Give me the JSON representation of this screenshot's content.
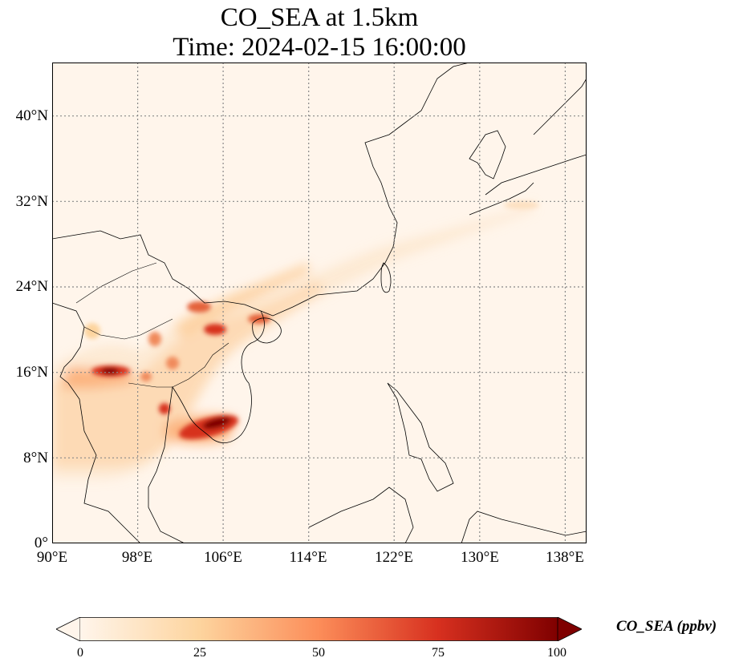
{
  "title": {
    "line1": "CO_SEA at 1.5km",
    "line2": "Time: 2024-02-15 16:00:00"
  },
  "map": {
    "variable": "CO_SEA",
    "height": "1.5km",
    "colormap": "OrRd",
    "background_color": "#fff5eb",
    "lon_range": [
      90,
      140
    ],
    "lat_range": [
      0,
      45
    ],
    "lat_labels": [
      "40°N",
      "32°N",
      "24°N",
      "16°N",
      "8°N",
      "0°"
    ],
    "lon_labels": [
      "90°E",
      "98°E",
      "106°E",
      "114°E",
      "122°E",
      "130°E",
      "138°E"
    ],
    "gridlines": true,
    "gridline_style": "dotted"
  },
  "colorbar": {
    "label": "CO_SEA (ppbv)",
    "ticks": [
      "0",
      "25",
      "50",
      "75",
      "100"
    ],
    "min": 0,
    "max": 100,
    "extend": "both",
    "colors": [
      "#fff5eb",
      "#fdd49e",
      "#fc8d59",
      "#d7301f",
      "#7f0000"
    ]
  }
}
